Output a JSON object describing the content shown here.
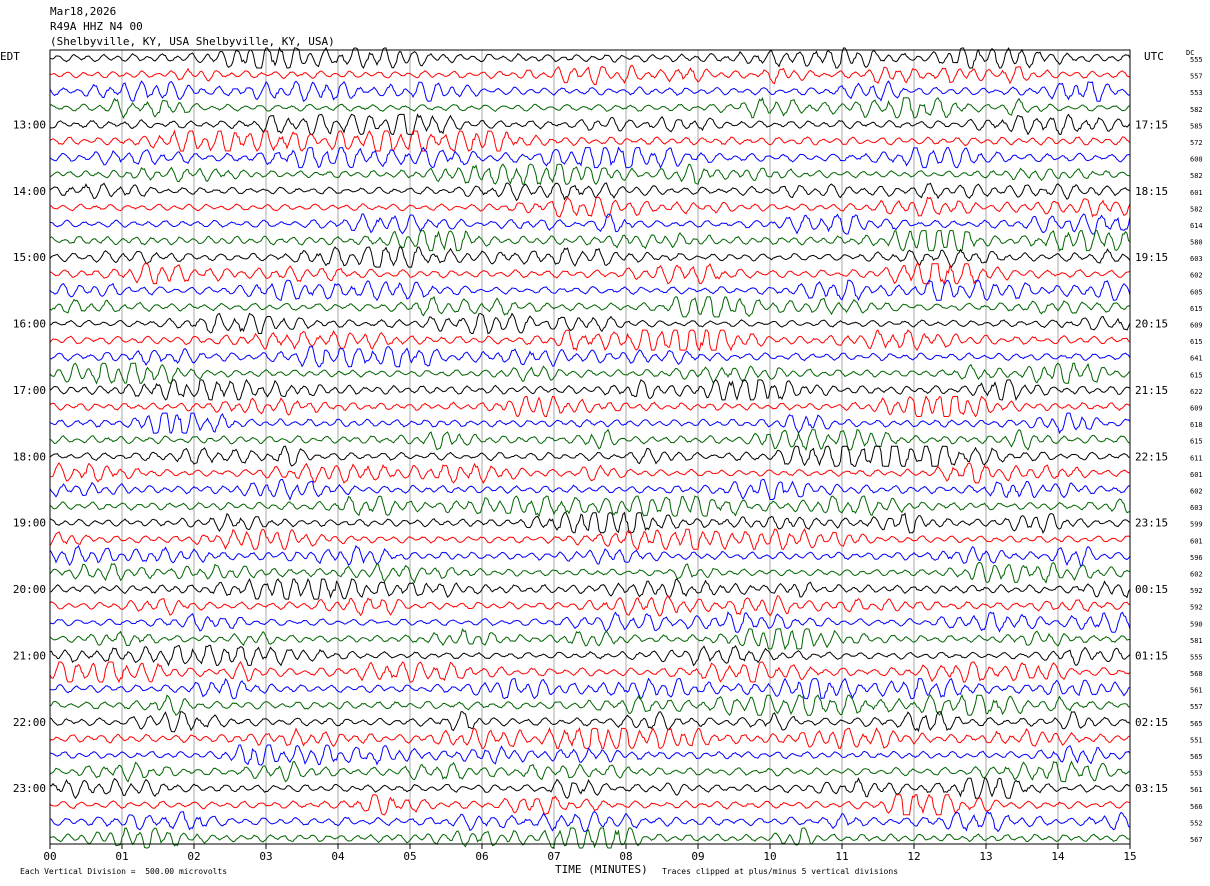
{
  "header": {
    "date": "Mar18,2026",
    "station": "R49A HHZ N4 00",
    "location": "(Shelbyville, KY, USA Shelbyville, KY, USA)"
  },
  "left_zone": "EDT",
  "right_zone": "UTC",
  "dc_label": "DC",
  "footer": {
    "scale_note": "Each Vertical Division =  500.00 microvolts",
    "clip_note": "Traces clipped at plus/minus 5 vertical divisions"
  },
  "colors": {
    "trace_cycle": [
      "#000000",
      "#ff0000",
      "#0000ff",
      "#006400"
    ],
    "grid": "#aaaaaa"
  },
  "chart_data": {
    "type": "line",
    "title": "",
    "xlabel": "TIME (MINUTES)",
    "ylabel": "",
    "xlim": [
      0,
      15
    ],
    "x_ticks": [
      "00",
      "01",
      "02",
      "03",
      "04",
      "05",
      "06",
      "07",
      "08",
      "09",
      "10",
      "11",
      "12",
      "13",
      "14",
      "15"
    ],
    "left_hour_labels": [
      "13:00",
      "14:00",
      "15:00",
      "16:00",
      "17:00",
      "18:00",
      "19:00",
      "20:00",
      "21:00",
      "22:00",
      "23:00"
    ],
    "right_hour_labels": [
      "17:15",
      "18:15",
      "19:15",
      "20:15",
      "21:15",
      "22:15",
      "23:15",
      "00:15",
      "01:15",
      "02:15",
      "03:15"
    ],
    "hour_label_first_trace": 4,
    "traces_per_hour": 4,
    "trace_dc_values": [
      555,
      557,
      553,
      582,
      585,
      572,
      600,
      582,
      601,
      582,
      614,
      580,
      603,
      602,
      605,
      615,
      609,
      615,
      641,
      615,
      622,
      609,
      618,
      615,
      611,
      601,
      602,
      603,
      599,
      601,
      596,
      602,
      592,
      592,
      590,
      581,
      555,
      568,
      561,
      557,
      565,
      551,
      565,
      553,
      561,
      566,
      552,
      567
    ],
    "grid": true
  }
}
